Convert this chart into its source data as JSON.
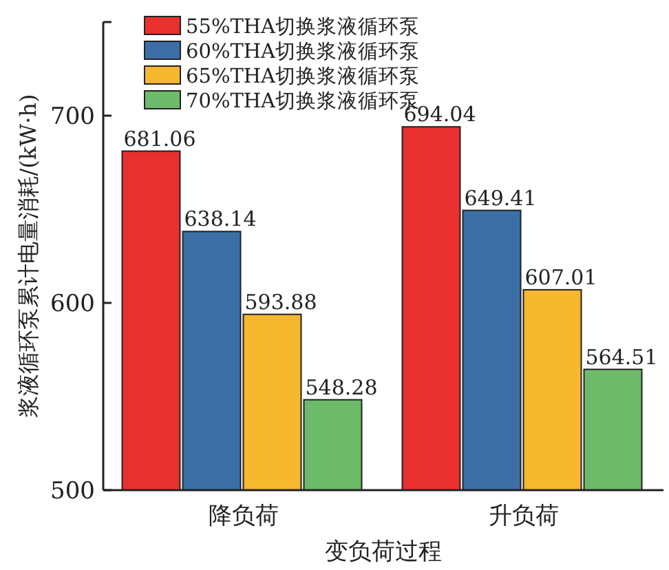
{
  "chart_data": {
    "type": "bar",
    "xlabel": "变负荷过程",
    "ylabel": "浆液循环泵累计电量消耗/(kW·h)",
    "categories": [
      "降负荷",
      "升负荷"
    ],
    "series": [
      {
        "name": "55%THA切换浆液循环泵",
        "color": "#e8302f",
        "values": [
          681.06,
          694.04
        ]
      },
      {
        "name": "60%THA切换浆液循环泵",
        "color": "#3b6fa6",
        "values": [
          638.14,
          649.41
        ]
      },
      {
        "name": "65%THA切换浆液循环泵",
        "color": "#f5b82e",
        "values": [
          593.88,
          607.01
        ]
      },
      {
        "name": "70%THA切换浆液循环泵",
        "color": "#6dbb6a",
        "values": [
          548.28,
          564.51
        ]
      }
    ],
    "ylim": [
      500,
      750
    ],
    "yticks": [
      500,
      600,
      700
    ],
    "data_labels": true,
    "legend": "top left",
    "grid": false
  }
}
